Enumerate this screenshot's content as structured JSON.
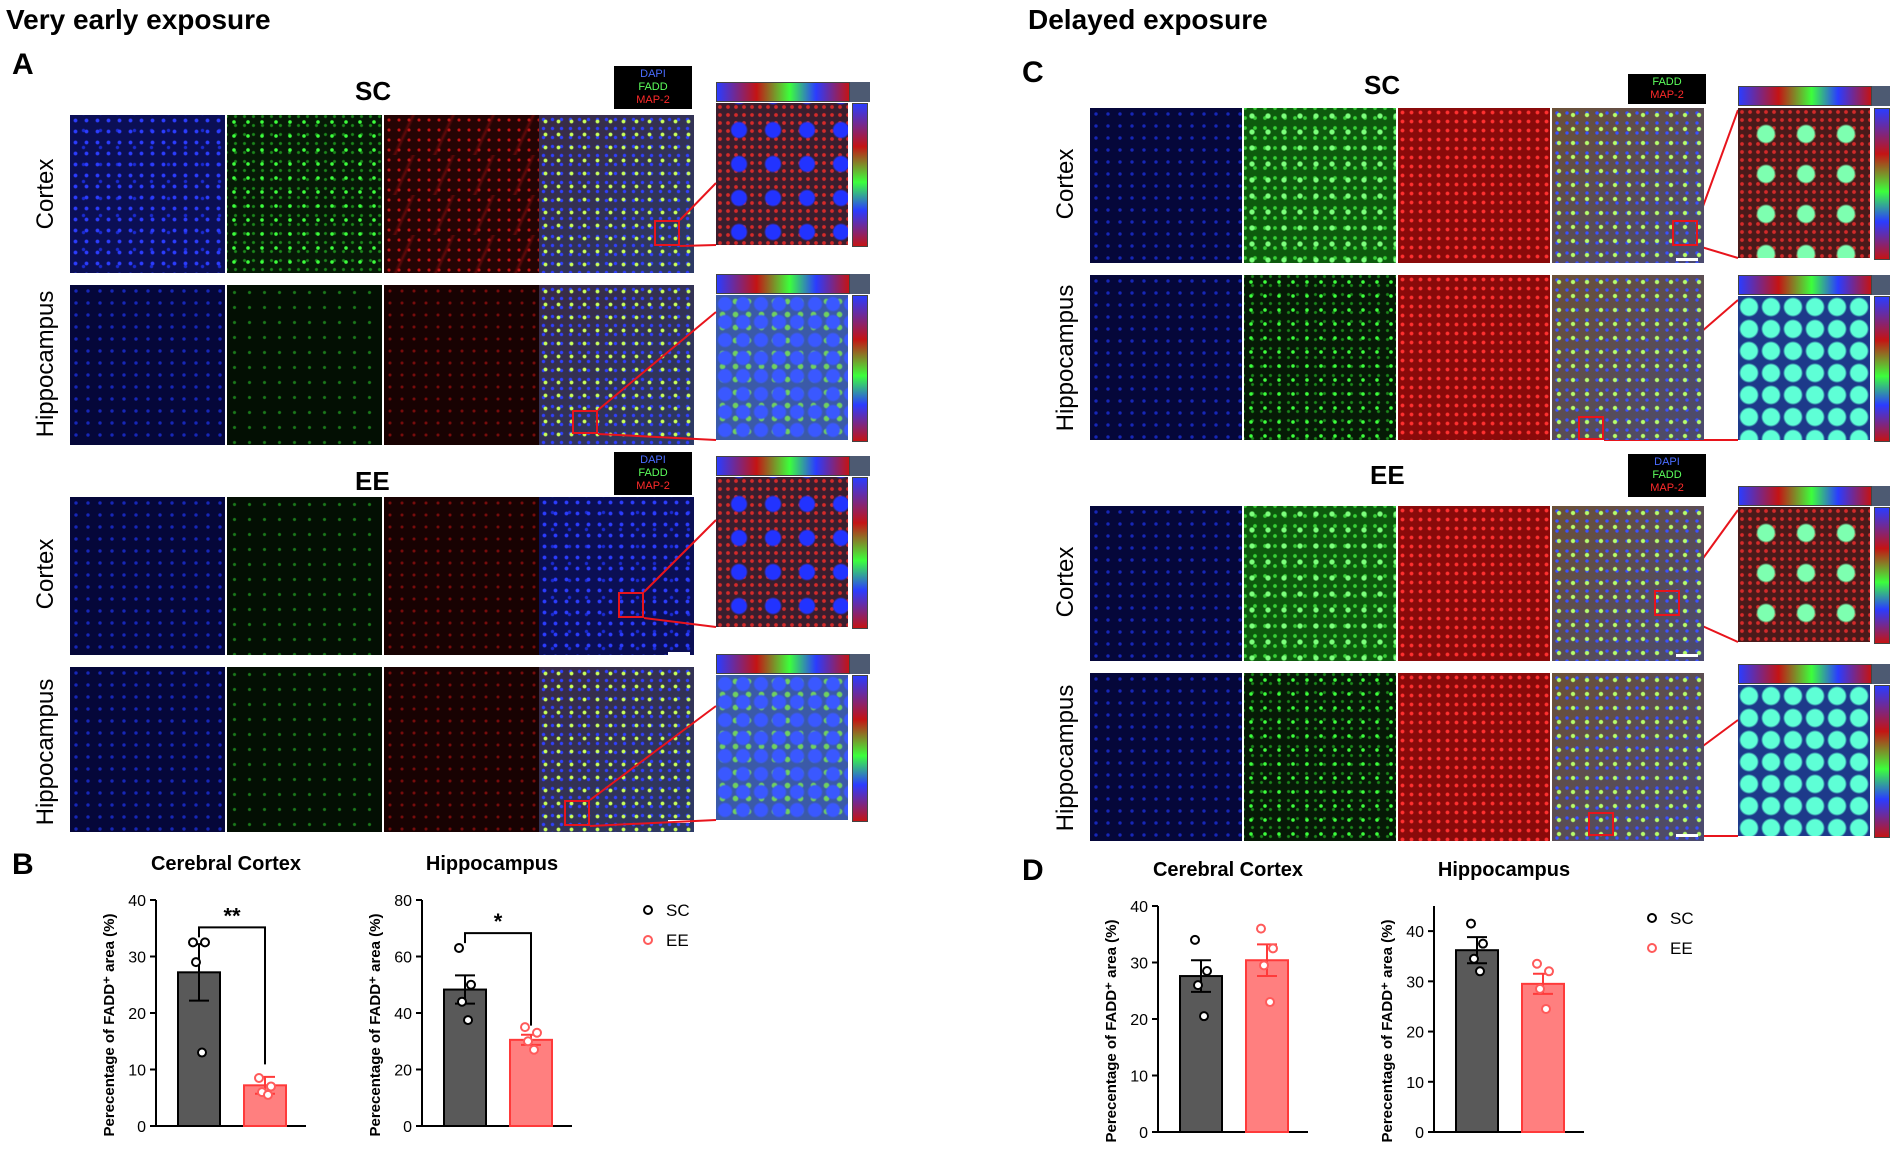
{
  "left_section": {
    "title": "Very early exposure",
    "panel_a": "A",
    "panel_b": "B",
    "groups": [
      {
        "name": "SC",
        "legend": [
          "DAPI",
          "FADD",
          "MAP-2"
        ]
      },
      {
        "name": "EE",
        "legend": [
          "DAPI",
          "FADD",
          "MAP-2"
        ]
      }
    ],
    "rows": [
      "Cortex",
      "Hippocampus",
      "Cortex",
      "Hippocampus"
    ]
  },
  "right_section": {
    "title": "Delayed exposure",
    "panel_c": "C",
    "panel_d": "D",
    "groups": [
      {
        "name": "SC",
        "legend": [
          "FADD",
          "MAP-2"
        ]
      },
      {
        "name": "EE",
        "legend": [
          "DAPI",
          "FADD",
          "MAP-2"
        ]
      }
    ],
    "rows": [
      "Cortex",
      "Hippocampus",
      "Cortex",
      "Hippocampus"
    ]
  },
  "colors": {
    "dapi": "#4a6cff",
    "fadd": "#5cff5c",
    "map2": "#ff2a2a",
    "roi": "#e8141c",
    "sc_bar": "#595959",
    "ee_bar": "#ff7f7f",
    "ee_point": "#ff5a5a"
  },
  "chart_data": [
    {
      "type": "bar",
      "panel": "B",
      "title": "Cerebral Cortex",
      "categories": [
        "SC",
        "EE"
      ],
      "values": [
        27.2,
        7.2
      ],
      "sem": [
        5.0,
        1.5
      ],
      "points": [
        [
          32.5,
          32.5,
          29,
          13
        ],
        [
          8.5,
          7,
          6,
          5.5
        ]
      ],
      "ylabel": "Perecentage of FADD⁺ area (%)",
      "ylim": [
        0,
        40
      ],
      "yticks": [
        "0",
        "10",
        "20",
        "30",
        "40"
      ],
      "significance": "**",
      "legend": [
        "SC",
        "EE"
      ]
    },
    {
      "type": "bar",
      "panel": "B",
      "title": "Hippocampus",
      "categories": [
        "SC",
        "EE"
      ],
      "values": [
        48.3,
        30.5
      ],
      "sem": [
        5.0,
        1.8
      ],
      "points": [
        [
          63,
          50,
          44,
          37.5
        ],
        [
          35,
          33,
          30,
          27
        ]
      ],
      "ylabel": "Perecentage of FADD⁺ area (%)",
      "ylim": [
        0,
        80
      ],
      "yticks": [
        "0",
        "20",
        "40",
        "60",
        "80"
      ],
      "significance": "*",
      "legend": [
        "SC",
        "EE"
      ]
    },
    {
      "type": "bar",
      "panel": "D",
      "title": "Cerebral Cortex",
      "categories": [
        "SC",
        "EE"
      ],
      "values": [
        27.6,
        30.4
      ],
      "sem": [
        2.8,
        2.8
      ],
      "points": [
        [
          34,
          28.5,
          26,
          20.5
        ],
        [
          36,
          32.5,
          29.5,
          23
        ]
      ],
      "ylabel": "Perecentage of FADD⁺ area (%)",
      "ylim": [
        0,
        40
      ],
      "yticks": [
        "0",
        "10",
        "20",
        "30",
        "40"
      ],
      "significance": "",
      "legend": [
        "SC",
        "EE"
      ]
    },
    {
      "type": "bar",
      "panel": "D",
      "title": "Hippocampus",
      "categories": [
        "SC",
        "EE"
      ],
      "values": [
        36.2,
        29.5
      ],
      "sem": [
        2.6,
        2.0
      ],
      "points": [
        [
          41.5,
          37.5,
          34.5,
          32
        ],
        [
          33.5,
          32,
          28.5,
          24.5
        ]
      ],
      "ylabel": "Perecentage of FADD⁺ area (%)",
      "ylim": [
        0,
        45
      ],
      "yticks": [
        "0",
        "10",
        "20",
        "30",
        "40"
      ],
      "significance": "",
      "legend": [
        "SC",
        "EE"
      ]
    }
  ]
}
